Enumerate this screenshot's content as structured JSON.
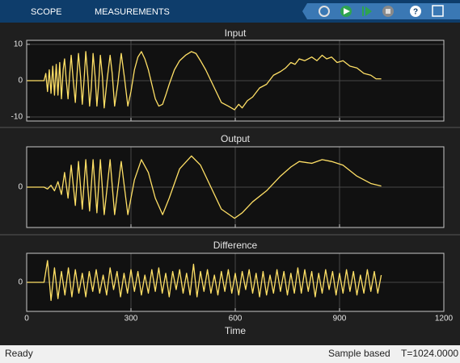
{
  "toolbar": {
    "tabs": [
      "SCOPE",
      "MEASUREMENTS"
    ]
  },
  "chart_data": [
    {
      "type": "line",
      "title": "Input",
      "color": "#ffe066",
      "xlim": [
        0,
        1200
      ],
      "ylim": [
        -11.1,
        11.1
      ],
      "yticks": [
        -10,
        0,
        10
      ],
      "grid": true,
      "x": [
        0,
        50,
        55,
        60,
        65,
        70,
        75,
        80,
        85,
        90,
        95,
        100,
        105,
        109,
        114,
        119,
        124,
        128,
        134,
        140,
        145,
        149,
        155,
        160,
        165,
        170,
        176,
        181,
        186,
        191,
        197,
        202,
        207,
        212,
        218,
        223,
        231,
        240,
        246,
        253,
        262,
        272,
        281,
        291,
        300,
        310,
        320,
        330,
        340,
        350,
        360,
        370,
        380,
        391,
        400,
        410,
        425,
        440,
        457,
        474,
        487,
        500,
        515,
        530,
        545,
        560,
        580,
        598,
        610,
        620,
        635,
        650,
        670,
        690,
        710,
        730,
        745,
        760,
        772,
        784,
        800,
        820,
        835,
        850,
        863,
        877,
        893,
        910,
        930,
        950,
        970,
        990,
        1005,
        1020
      ],
      "values": [
        0,
        0,
        2,
        -3,
        3,
        -3.5,
        4,
        -4,
        4.5,
        -4,
        5,
        -5,
        3,
        6,
        0,
        -5,
        2,
        7,
        0,
        -6,
        2,
        7.5,
        1,
        -6.5,
        0,
        8,
        1,
        -7,
        -2,
        7.5,
        1,
        -7,
        -1,
        7,
        1,
        -7.5,
        0,
        7,
        2,
        -7,
        -1,
        7.5,
        1,
        -7,
        -3,
        3,
        6.5,
        8,
        6,
        3,
        -1,
        -5,
        -7,
        -6.5,
        -4,
        -1,
        3,
        5.5,
        7,
        8,
        7.5,
        5.5,
        3,
        0,
        -3,
        -6,
        -7,
        -8,
        -6.5,
        -7.5,
        -5.5,
        -4.5,
        -2,
        -1,
        1.5,
        2.5,
        3.5,
        5,
        4.5,
        6,
        5.5,
        6.5,
        5.5,
        7,
        6,
        6.5,
        5,
        5.5,
        4,
        3.5,
        2,
        1.5,
        0.5,
        0.5
      ]
    },
    {
      "type": "line",
      "title": "Output",
      "color": "#ffe066",
      "xlim": [
        0,
        1200
      ],
      "ylim": [
        -11,
        11
      ],
      "yticks": [
        0
      ],
      "grid": true,
      "x": [
        0,
        50,
        60,
        70,
        80,
        90,
        100,
        109,
        119,
        128,
        140,
        149,
        160,
        170,
        181,
        191,
        202,
        212,
        223,
        240,
        253,
        272,
        291,
        310,
        330,
        350,
        370,
        391,
        410,
        440,
        474,
        500,
        530,
        560,
        598,
        620,
        650,
        690,
        730,
        760,
        784,
        820,
        850,
        877,
        910,
        950,
        990,
        1020
      ],
      "values": [
        0,
        0,
        -0.5,
        0.5,
        -1,
        1.5,
        -2,
        4,
        -3,
        6,
        -5,
        7,
        -6,
        7.5,
        -6.5,
        7.5,
        -7,
        7.5,
        -7.5,
        7.5,
        -7.5,
        7,
        -7.5,
        2,
        7.5,
        4,
        -3,
        -7.5,
        -3,
        5,
        8.5,
        6,
        0,
        -6,
        -8.5,
        -7,
        -4,
        -1,
        3,
        5.5,
        7,
        6.5,
        7.5,
        7,
        6,
        3,
        1,
        0.3
      ]
    },
    {
      "type": "line",
      "title": "Difference",
      "xlabel": "Time",
      "color": "#ffe066",
      "xlim": [
        0,
        1200
      ],
      "xticks": [
        0,
        300,
        600,
        900,
        1200
      ],
      "ylim": [
        -8,
        8
      ],
      "yticks": [
        0
      ],
      "grid": true,
      "x": [
        0,
        50,
        60,
        70,
        80,
        90,
        100,
        110,
        120,
        130,
        140,
        150,
        160,
        170,
        180,
        190,
        200,
        210,
        220,
        230,
        240,
        250,
        260,
        270,
        280,
        290,
        300,
        310,
        320,
        330,
        340,
        350,
        360,
        370,
        380,
        390,
        400,
        410,
        420,
        430,
        440,
        450,
        460,
        470,
        480,
        490,
        500,
        510,
        520,
        530,
        540,
        550,
        560,
        570,
        580,
        590,
        600,
        610,
        620,
        630,
        640,
        650,
        660,
        670,
        680,
        690,
        700,
        710,
        720,
        730,
        740,
        750,
        760,
        770,
        780,
        790,
        800,
        810,
        820,
        830,
        840,
        850,
        860,
        870,
        880,
        890,
        900,
        910,
        920,
        930,
        940,
        950,
        960,
        970,
        980,
        990,
        1000,
        1010,
        1020
      ],
      "values": [
        0,
        0,
        6,
        -5,
        4,
        -4.5,
        3,
        -3.5,
        4,
        -4,
        3.5,
        -3,
        2.5,
        -4,
        3,
        -2.5,
        3.5,
        -3,
        2,
        -3.5,
        4,
        -2,
        3,
        -4,
        2.5,
        -3,
        3.5,
        -2.5,
        3,
        -3.5,
        2,
        -3,
        3.5,
        -2.5,
        4,
        -3,
        2.5,
        -4,
        3,
        -2,
        3.5,
        -3,
        2.5,
        -3.5,
        5,
        -4,
        3,
        -2.5,
        3.5,
        -3,
        2,
        -3.5,
        3,
        -2.5,
        3.5,
        -3,
        2.5,
        -3.5,
        3,
        -2,
        3.5,
        -3,
        2.5,
        -4,
        3,
        -3.5,
        2,
        -3,
        3.5,
        -2.5,
        3,
        -3.5,
        2.5,
        -3,
        4,
        -3,
        3.5,
        -2.5,
        3,
        -4,
        2.5,
        -3,
        3.5,
        -2,
        3,
        -3.5,
        2.5,
        -3,
        3.5,
        -2.5,
        3,
        -3.5,
        2,
        -3,
        3.5,
        -2.5,
        3,
        -3,
        2
      ]
    }
  ],
  "status": {
    "left": "Ready",
    "mode": "Sample based",
    "time": "T=1024.0000"
  }
}
